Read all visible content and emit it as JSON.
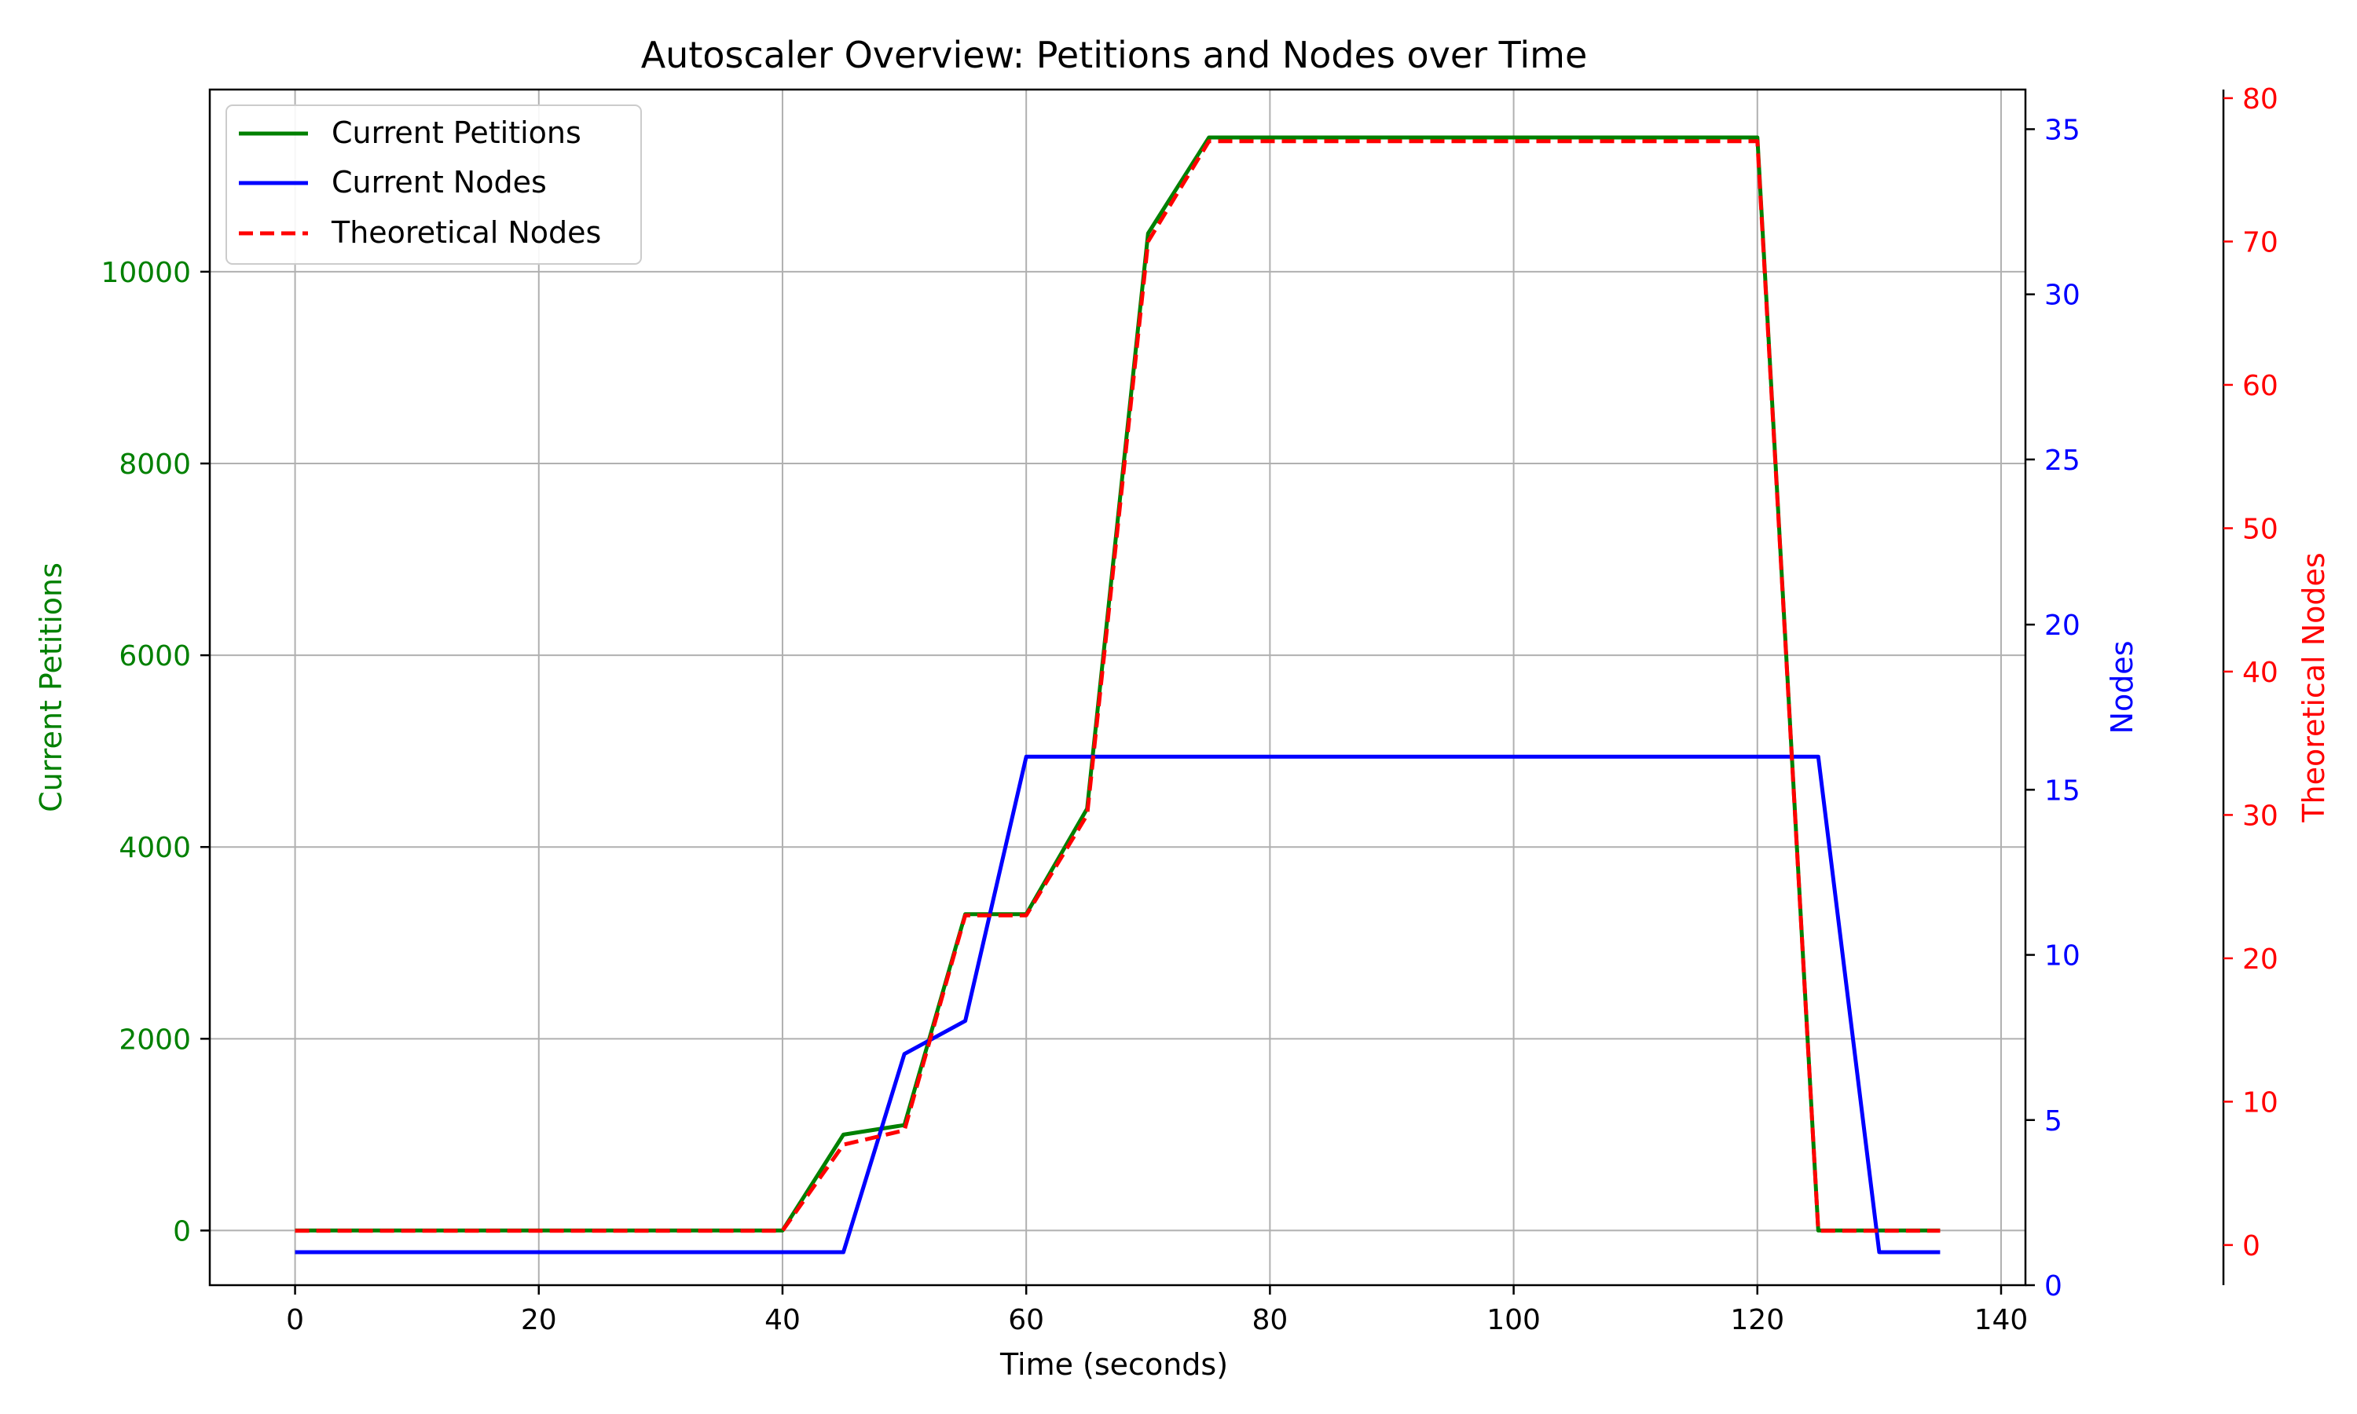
{
  "chart_data": {
    "type": "line",
    "title": "Autoscaler Overview: Petitions and Nodes over Time",
    "xlabel": "Time (seconds)",
    "xlim": [
      -7,
      142
    ],
    "xticks": [
      0,
      20,
      40,
      60,
      80,
      100,
      120,
      140
    ],
    "grid": true,
    "legend_position": "top-left",
    "x": [
      0,
      5,
      10,
      15,
      20,
      25,
      30,
      35,
      40,
      45,
      50,
      55,
      60,
      65,
      70,
      75,
      80,
      85,
      90,
      95,
      100,
      105,
      110,
      115,
      120,
      125,
      130,
      135
    ],
    "axes": {
      "left": {
        "label": "Current Petitions",
        "color": "#008000",
        "ylim": [
          -570,
          11900
        ],
        "ticks": [
          0,
          2000,
          4000,
          6000,
          8000,
          10000
        ]
      },
      "right": {
        "label": "Nodes",
        "color": "#0000ff",
        "ylim": [
          0,
          36.2
        ],
        "ticks": [
          0,
          5,
          10,
          15,
          20,
          25,
          30,
          35
        ]
      },
      "far_right": {
        "label": "Theoretical Nodes",
        "color": "#ff0000",
        "ylim": [
          -2.8,
          80.6
        ],
        "ticks": [
          0,
          10,
          20,
          30,
          40,
          50,
          60,
          70,
          80
        ]
      }
    },
    "series": [
      {
        "name": "Current Petitions",
        "axis": "left",
        "color": "#008000",
        "style": "solid",
        "values": [
          0,
          0,
          0,
          0,
          0,
          0,
          0,
          0,
          0,
          1000,
          1100,
          3300,
          3300,
          4400,
          10400,
          11400,
          11400,
          11400,
          11400,
          11400,
          11400,
          11400,
          11400,
          11400,
          11400,
          0,
          0,
          0
        ]
      },
      {
        "name": "Current Nodes",
        "axis": "right",
        "color": "#0000ff",
        "style": "solid",
        "values": [
          1,
          1,
          1,
          1,
          1,
          1,
          1,
          1,
          1,
          1,
          7,
          8,
          16,
          16,
          16,
          16,
          16,
          16,
          16,
          16,
          16,
          16,
          16,
          16,
          16,
          16,
          1,
          1
        ]
      },
      {
        "name": "Theoretical Nodes",
        "axis": "far_right",
        "color": "#ff0000",
        "style": "dashed",
        "values": [
          1,
          1,
          1,
          1,
          1,
          1,
          1,
          1,
          1,
          7,
          8,
          23,
          23,
          30,
          70,
          77,
          77,
          77,
          77,
          77,
          77,
          77,
          77,
          77,
          77,
          1,
          1,
          1
        ]
      }
    ]
  }
}
